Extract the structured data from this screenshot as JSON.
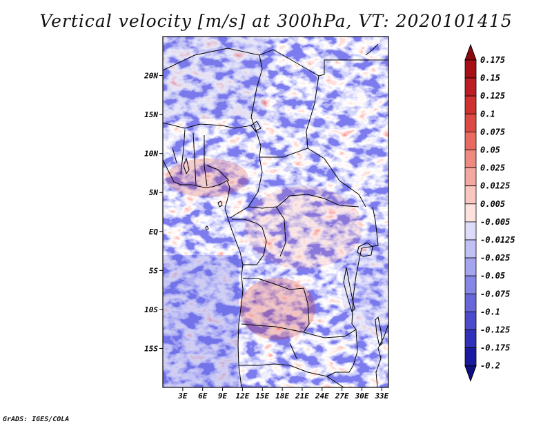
{
  "title": "Vertical velocity [m/s] at 300hPa, VT: 2020101415",
  "footer": "GrADS: IGES/COLA",
  "map": {
    "lon_range": [
      0,
      34
    ],
    "lat_range": [
      -20,
      25
    ],
    "lat_ticks": [
      {
        "value": 20,
        "label": "20N"
      },
      {
        "value": 15,
        "label": "15N"
      },
      {
        "value": 10,
        "label": "10N"
      },
      {
        "value": 5,
        "label": "5N"
      },
      {
        "value": 0,
        "label": "EQ"
      },
      {
        "value": -5,
        "label": "5S"
      },
      {
        "value": -10,
        "label": "10S"
      },
      {
        "value": -15,
        "label": "15S"
      }
    ],
    "lon_ticks": [
      {
        "value": 3,
        "label": "3E"
      },
      {
        "value": 6,
        "label": "6E"
      },
      {
        "value": 9,
        "label": "9E"
      },
      {
        "value": 12,
        "label": "12E"
      },
      {
        "value": 15,
        "label": "15E"
      },
      {
        "value": 18,
        "label": "18E"
      },
      {
        "value": 21,
        "label": "21E"
      },
      {
        "value": 24,
        "label": "24E"
      },
      {
        "value": 27,
        "label": "27E"
      },
      {
        "value": 30,
        "label": "30E"
      },
      {
        "value": 33,
        "label": "33E"
      }
    ]
  },
  "colorbar": {
    "levels": [
      {
        "label": "0.175",
        "color": "#a50f15"
      },
      {
        "label": "0.15",
        "color": "#bb1d22"
      },
      {
        "label": "0.125",
        "color": "#cf3030"
      },
      {
        "label": "0.1",
        "color": "#dd4a45"
      },
      {
        "label": "0.075",
        "color": "#e86a60"
      },
      {
        "label": "0.05",
        "color": "#ef8a80"
      },
      {
        "label": "0.025",
        "color": "#f5a8a0"
      },
      {
        "label": "0.0125",
        "color": "#f9c6c0"
      },
      {
        "label": "0.005",
        "color": "#fce1dc"
      },
      {
        "label": "-0.005",
        "color": "#ffffff"
      },
      {
        "label": "-0.0125",
        "color": "#dcdcfa"
      },
      {
        "label": "-0.025",
        "color": "#c0c0f5"
      },
      {
        "label": "-0.05",
        "color": "#a4a4ef"
      },
      {
        "label": "-0.075",
        "color": "#8686e6"
      },
      {
        "label": "-0.1",
        "color": "#6767da"
      },
      {
        "label": "-0.125",
        "color": "#4b4bcc"
      },
      {
        "label": "-0.175",
        "color": "#3030b8"
      },
      {
        "label": "-0.2",
        "color": "#1a1aa0"
      }
    ],
    "top_color": "#8a0a10",
    "bottom_color": "#0e0e85"
  }
}
